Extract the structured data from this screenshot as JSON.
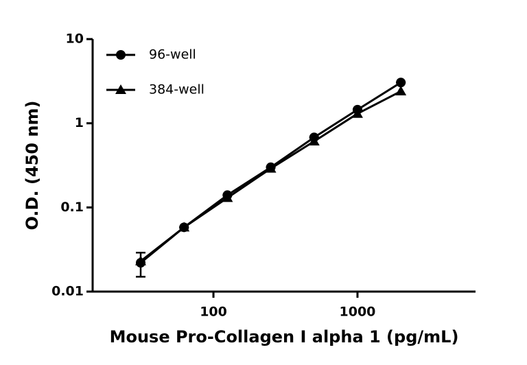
{
  "chart_data": {
    "type": "line",
    "xlabel": "Mouse Pro-Collagen I alpha 1 (pg/mL)",
    "ylabel": "O.D. (450 nm)",
    "x": [
      31.25,
      62.5,
      125,
      250,
      500,
      1000,
      2000
    ],
    "series": [
      {
        "name": "96-well",
        "color": "#000000",
        "marker": "circle",
        "values": [
          0.022,
          0.058,
          0.14,
          0.3,
          0.68,
          1.45,
          3.05
        ],
        "errors": [
          0.007,
          0,
          0,
          0,
          0,
          0,
          0
        ]
      },
      {
        "name": "384-well",
        "color": "#000000",
        "marker": "triangle",
        "values": [
          0.023,
          0.058,
          0.13,
          0.29,
          0.61,
          1.3,
          2.4
        ]
      }
    ],
    "xscale": "log",
    "yscale": "log",
    "xlim": [
      14.5,
      6600
    ],
    "ylim": [
      0.01,
      10
    ],
    "xticks": [
      100,
      1000
    ],
    "yticks": [
      0.01,
      0.1,
      1,
      10
    ],
    "legend": "upper left"
  }
}
